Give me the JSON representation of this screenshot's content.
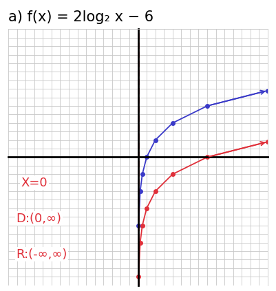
{
  "chart_data": {
    "type": "line",
    "title": "a) f(x) = 2log₂ x − 6",
    "x": [
      0.0625,
      0.25,
      0.5,
      1,
      2,
      4,
      8,
      15
    ],
    "series": [
      {
        "color": "#3a3ac8",
        "marker": "o",
        "line_style": "solid",
        "values": [
          -8,
          -4,
          -2,
          0,
          2,
          4,
          6,
          7.8
        ]
      },
      {
        "color": "#e0303a",
        "marker": "o",
        "line_style": "solid",
        "values": [
          -14,
          -10,
          -8,
          -6,
          -4,
          -2,
          0,
          1.8
        ]
      }
    ],
    "asymptote_x": 0,
    "annotations": [
      "X=0",
      "D:(0,∞)",
      "R:(-∞,∞)"
    ],
    "xlim": [
      -15,
      15
    ],
    "ylim": [
      -15,
      15
    ],
    "xticks": [
      -15,
      -14,
      -13,
      -12,
      -11,
      -10,
      -9,
      -8,
      -7,
      -6,
      -5,
      -4,
      -3,
      -2,
      -1,
      0,
      1,
      2,
      3,
      4,
      5,
      6,
      7,
      8,
      9,
      10,
      11,
      12,
      13,
      14,
      15
    ],
    "yticks": [
      -15,
      -14,
      -13,
      -12,
      -11,
      -10,
      -9,
      -8,
      -7,
      -6,
      -5,
      -4,
      -3,
      -2,
      -1,
      0,
      1,
      2,
      3,
      4,
      5,
      6,
      7,
      8,
      9,
      10,
      11,
      12,
      13,
      14,
      15
    ],
    "grid": true,
    "tick_labels": false
  }
}
